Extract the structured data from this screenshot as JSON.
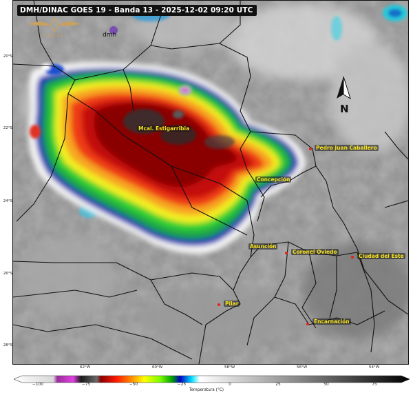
{
  "title": "DMH/DINAC GOES 19 - Banda 13 - 2025-12-02 09:20 UTC",
  "logos": {
    "dinac": "DINAC",
    "dmh": "dmh"
  },
  "north_arrow_label": "N",
  "cities": [
    {
      "name": "Mcal. Estigarribia"
    },
    {
      "name": "Pedro Juan Caballero"
    },
    {
      "name": "Concepción"
    },
    {
      "name": "Asunción"
    },
    {
      "name": "Coronel Oviedo"
    },
    {
      "name": "Ciudad del Este"
    },
    {
      "name": "Pilar"
    },
    {
      "name": "Encarnación"
    }
  ],
  "latitude_labels": [
    "20°S",
    "22°S",
    "24°S",
    "26°S",
    "28°S"
  ],
  "longitude_labels": [
    "62°W",
    "60°W",
    "58°W",
    "56°W",
    "54°W"
  ],
  "colorbar": {
    "label": "Temperatura (°C)",
    "ticks": [
      "−100",
      "−75",
      "−50",
      "−25",
      "0",
      "25",
      "50",
      "75"
    ],
    "colors": [
      "#f2f2f2",
      "#c8c8c8",
      "#9a2d9a",
      "#e040e0",
      "#1a1a1a",
      "#5a5a5a",
      "#8b0000",
      "#ff0000",
      "#ff8c00",
      "#ffff00",
      "#7cfc00",
      "#00c800",
      "#0000c8",
      "#00ffff",
      "#ffffff",
      "#000000"
    ]
  }
}
